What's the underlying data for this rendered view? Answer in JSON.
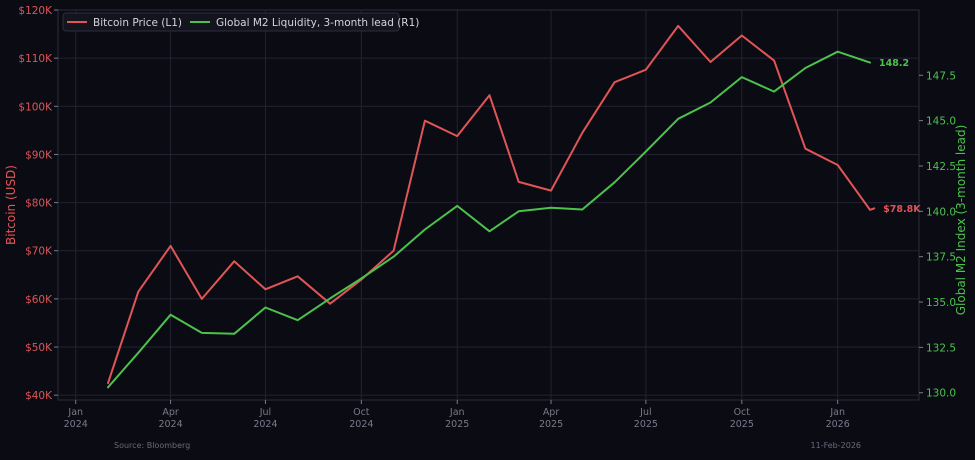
{
  "colors": {
    "background": "#0b0b14",
    "grid": "#222233",
    "btc": "#e05555",
    "m2": "#4cc24c",
    "muted": "#7a7a8a",
    "legend_bg": "#14141f"
  },
  "legend": {
    "btc_label": "Bitcoin Price (L1)",
    "m2_label": "Global M2 Liquidity, 3-month lead (R1)"
  },
  "footer": {
    "source": "Source: Bloomberg",
    "date": "11-Feb-2026"
  },
  "chart_data": {
    "type": "line",
    "ylabel_left": "Bitcoin (USD)",
    "ylabel_right": "Global M2 Index (3-month lead)",
    "grid": true,
    "legend_position": "top-left",
    "xlim": [
      "2023-12-15",
      "2026-03-20"
    ],
    "x_ticks": [
      {
        "date": "2024-01-01",
        "line1": "Jan",
        "line2": "2024"
      },
      {
        "date": "2024-04-01",
        "line1": "Apr",
        "line2": "2024"
      },
      {
        "date": "2024-07-01",
        "line1": "Jul",
        "line2": "2024"
      },
      {
        "date": "2024-10-01",
        "line1": "Oct",
        "line2": "2024"
      },
      {
        "date": "2025-01-01",
        "line1": "Jan",
        "line2": "2025"
      },
      {
        "date": "2025-04-01",
        "line1": "Apr",
        "line2": "2025"
      },
      {
        "date": "2025-07-01",
        "line1": "Jul",
        "line2": "2025"
      },
      {
        "date": "2025-10-01",
        "line1": "Oct",
        "line2": "2025"
      },
      {
        "date": "2026-01-01",
        "line1": "Jan",
        "line2": "2026"
      }
    ],
    "left_axis": {
      "ylim": [
        39000,
        120000
      ],
      "ticks": [
        40000,
        50000,
        60000,
        70000,
        80000,
        90000,
        100000,
        110000,
        120000
      ],
      "tick_labels": [
        "$40K",
        "$50K",
        "$60K",
        "$70K",
        "$80K",
        "$90K",
        "$100K",
        "$110K",
        "$120K"
      ]
    },
    "right_axis": {
      "ylim": [
        129.6,
        151.1
      ],
      "ticks": [
        130.0,
        132.5,
        135.0,
        137.5,
        140.0,
        142.5,
        145.0,
        147.5
      ],
      "tick_labels": [
        "130.0",
        "132.5",
        "135.0",
        "137.5",
        "140.0",
        "142.5",
        "145.0",
        "147.5"
      ]
    },
    "series": [
      {
        "name": "Bitcoin Price (L1)",
        "axis": "left",
        "end_label": "$78.8K",
        "points": [
          {
            "x": "2024-02-01",
            "y": 42500
          },
          {
            "x": "2024-03-01",
            "y": 61500
          },
          {
            "x": "2024-04-01",
            "y": 71000
          },
          {
            "x": "2024-05-01",
            "y": 60000
          },
          {
            "x": "2024-06-01",
            "y": 67800
          },
          {
            "x": "2024-07-01",
            "y": 62000
          },
          {
            "x": "2024-08-01",
            "y": 64700
          },
          {
            "x": "2024-09-01",
            "y": 59000
          },
          {
            "x": "2024-10-01",
            "y": 64000
          },
          {
            "x": "2024-11-01",
            "y": 70000
          },
          {
            "x": "2024-12-01",
            "y": 97000
          },
          {
            "x": "2025-01-01",
            "y": 93800
          },
          {
            "x": "2025-02-01",
            "y": 102300
          },
          {
            "x": "2025-03-01",
            "y": 84300
          },
          {
            "x": "2025-04-01",
            "y": 82500
          },
          {
            "x": "2025-05-01",
            "y": 94500
          },
          {
            "x": "2025-06-01",
            "y": 105000
          },
          {
            "x": "2025-07-01",
            "y": 107600
          },
          {
            "x": "2025-08-01",
            "y": 116700
          },
          {
            "x": "2025-09-01",
            "y": 109200
          },
          {
            "x": "2025-10-01",
            "y": 114700
          },
          {
            "x": "2025-11-01",
            "y": 109500
          },
          {
            "x": "2025-12-01",
            "y": 91200
          },
          {
            "x": "2026-01-01",
            "y": 87800
          },
          {
            "x": "2026-02-01",
            "y": 78500
          },
          {
            "x": "2026-02-05",
            "y": 78800
          }
        ]
      },
      {
        "name": "Global M2 Liquidity, 3-month lead (R1)",
        "axis": "right",
        "end_label": "148.2",
        "points": [
          {
            "x": "2024-02-01",
            "y": 130.3
          },
          {
            "x": "2024-03-01",
            "y": 132.2
          },
          {
            "x": "2024-04-01",
            "y": 134.3
          },
          {
            "x": "2024-05-01",
            "y": 133.3
          },
          {
            "x": "2024-06-01",
            "y": 133.25
          },
          {
            "x": "2024-07-01",
            "y": 134.7
          },
          {
            "x": "2024-08-01",
            "y": 134.0
          },
          {
            "x": "2024-09-01",
            "y": 135.2
          },
          {
            "x": "2024-10-01",
            "y": 136.3
          },
          {
            "x": "2024-11-01",
            "y": 137.5
          },
          {
            "x": "2024-12-01",
            "y": 139.0
          },
          {
            "x": "2025-01-01",
            "y": 140.3
          },
          {
            "x": "2025-02-01",
            "y": 138.9
          },
          {
            "x": "2025-03-01",
            "y": 140.0
          },
          {
            "x": "2025-04-01",
            "y": 140.2
          },
          {
            "x": "2025-05-01",
            "y": 140.1
          },
          {
            "x": "2025-06-01",
            "y": 141.6
          },
          {
            "x": "2025-07-01",
            "y": 143.3
          },
          {
            "x": "2025-08-01",
            "y": 145.1
          },
          {
            "x": "2025-09-01",
            "y": 146.0
          },
          {
            "x": "2025-10-01",
            "y": 147.4
          },
          {
            "x": "2025-11-01",
            "y": 146.6
          },
          {
            "x": "2025-12-01",
            "y": 147.9
          },
          {
            "x": "2026-01-01",
            "y": 148.8
          },
          {
            "x": "2026-02-01",
            "y": 148.2
          }
        ]
      }
    ]
  }
}
